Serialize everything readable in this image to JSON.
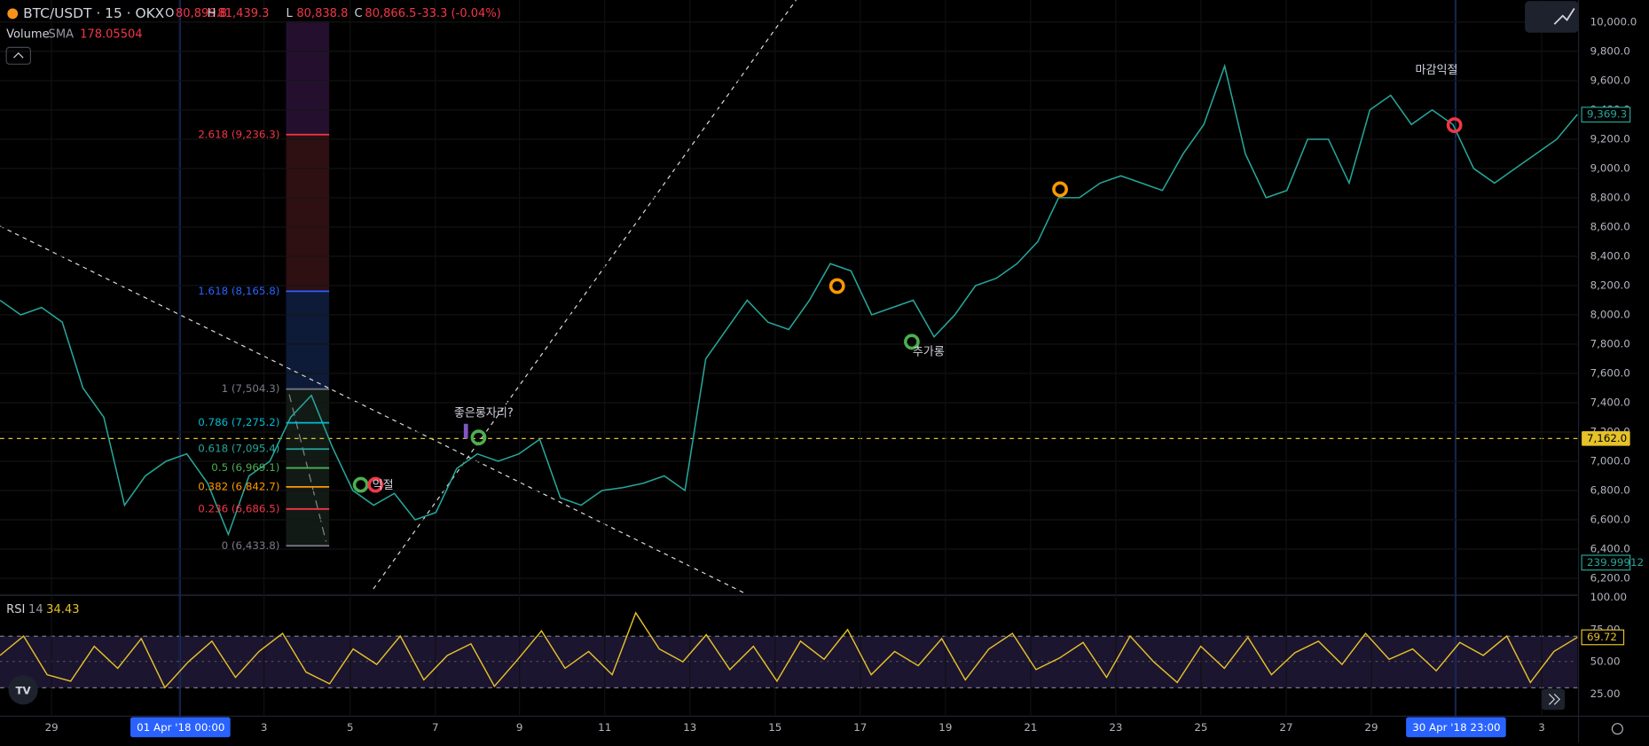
{
  "header": {
    "symbol": "BTC/USDT · 15 · OKX",
    "ohlc": [
      {
        "key": "O",
        "value": "80,899.8"
      },
      {
        "key": "H",
        "value": "81,439.3"
      },
      {
        "key": "L",
        "value": "80,838.8"
      },
      {
        "key": "C",
        "value": "80,866.5"
      }
    ],
    "change": "-33.3 (-0.04%)"
  },
  "volume_legend": {
    "name": "Volume",
    "indicator": "SMA",
    "value": "178.05504"
  },
  "price_axis": {
    "ticks": [
      "10,000.0",
      "9,800.0",
      "9,600.0",
      "9,400.0",
      "9,200.0",
      "9,000.0",
      "8,800.0",
      "8,600.0",
      "8,400.0",
      "8,200.0",
      "8,000.0",
      "7,800.0",
      "7,600.0",
      "7,400.0",
      "7,200.0",
      "7,000.0",
      "6,800.0",
      "6,600.0",
      "6,400.0",
      "6,200.0"
    ],
    "last_price": "9,369.3",
    "line_price": "7,162.0",
    "volume_value": "239.99912"
  },
  "time_axis": {
    "ticks": [
      "29",
      "01 Apr '18",
      "3",
      "5",
      "7",
      "9",
      "11",
      "13",
      "15",
      "17",
      "19",
      "21",
      "23",
      "25",
      "27",
      "29",
      "30 Apr '18",
      "3"
    ],
    "times": {
      "1": "00:00",
      "16": "23:00"
    }
  },
  "fibonacci": [
    "2.618 (9,236.3)",
    "1.618 (8,165.8)",
    "1 (7,504.3)",
    "0.786 (7,275.2)",
    "0.618 (7,095.4)",
    "0.5 (6,969.1)",
    "0.382 (6,842.7)",
    "0.236 (6,686.5)",
    "0 (6,433.8)"
  ],
  "annotations": [
    "좋은롱자리?",
    "추가롱",
    "마감익절",
    "익절"
  ],
  "price_line": [
    8100,
    8000,
    8050,
    7950,
    7500,
    7300,
    6700,
    6900,
    7000,
    7050,
    6850,
    6500,
    6900,
    7000,
    7300,
    7450,
    7100,
    6800,
    6700,
    6780,
    6600,
    6650,
    6950,
    7050,
    7000,
    7050,
    7150,
    6750,
    6700,
    6800,
    6820,
    6850,
    6900,
    6800,
    7700,
    7900,
    8100,
    7950,
    7900,
    8100,
    8350,
    8300,
    8000,
    8050,
    8100,
    7850,
    8000,
    8200,
    8250,
    8350,
    8500,
    8800,
    8800,
    8900,
    8950,
    8900,
    8850,
    9100,
    9300,
    9700,
    9100,
    8800,
    8850,
    9200,
    9200,
    8900,
    9400,
    9500,
    9300,
    9400,
    9300,
    9000,
    8900,
    9000,
    9100,
    9200,
    9370
  ],
  "rsi": {
    "name": "RSI",
    "length": "14",
    "value": "34.43",
    "badge": "69.72",
    "ticks": [
      "100.00",
      "75.00",
      "50.00",
      "25.00"
    ],
    "values": [
      55,
      70,
      40,
      35,
      62,
      45,
      68,
      30,
      50,
      66,
      38,
      58,
      72,
      42,
      33,
      60,
      48,
      70,
      36,
      55,
      64,
      31,
      52,
      74,
      45,
      58,
      40,
      88,
      60,
      50,
      71,
      44,
      62,
      35,
      66,
      52,
      75,
      40,
      58,
      47,
      68,
      36,
      60,
      72,
      44,
      53,
      65,
      38,
      70,
      50,
      34,
      62,
      45,
      69,
      40,
      57,
      66,
      48,
      72,
      52,
      60,
      43,
      65,
      55,
      70,
      34,
      58,
      69
    ]
  }
}
